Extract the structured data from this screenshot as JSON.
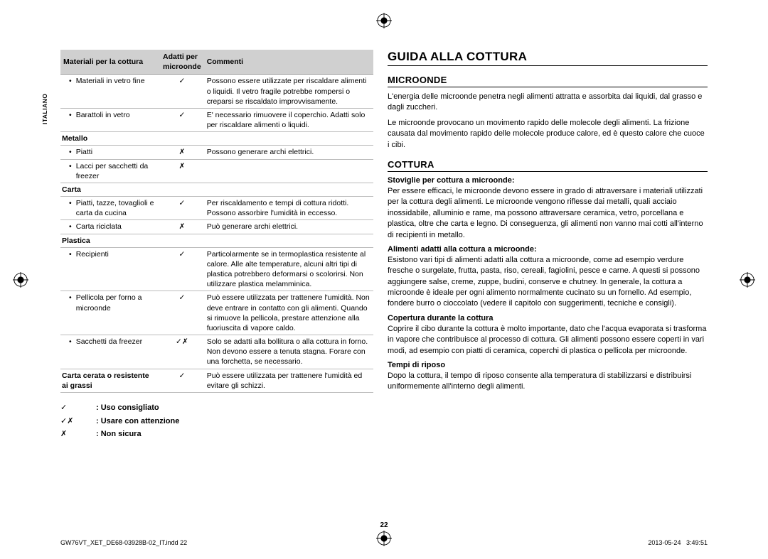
{
  "sideTab": "ITALIANO",
  "pageNumber": "22",
  "footer": {
    "left": "GW76VT_XET_DE68-03928B-02_IT.indd   22",
    "date": "2013-05-24",
    "time": "3:49:51"
  },
  "legend": {
    "items": [
      {
        "symbol": "✓",
        "text": ": Uso consigliato"
      },
      {
        "symbol": "✓✗",
        "text": ": Usare con attenzione"
      },
      {
        "symbol": "✗",
        "text": ": Non sicura"
      }
    ]
  },
  "table": {
    "headers": {
      "materiali": "Materiali per la cottura",
      "adatti": "Adatti per microonde",
      "commenti": "Commenti"
    },
    "rows": [
      {
        "type": "item",
        "material": "Materiali in vetro fine",
        "adatti": "✓",
        "comment": "Possono essere utilizzate per riscaldare alimenti o liquidi. Il vetro fragile potrebbe rompersi o creparsi se riscaldato improvvisamente."
      },
      {
        "type": "item",
        "material": "Barattoli in vetro",
        "adatti": "✓",
        "comment": "E' necessario rimuovere il coperchio. Adatti solo per riscaldare alimenti o liquidi."
      },
      {
        "type": "cat",
        "material": "Metallo"
      },
      {
        "type": "item",
        "material": "Piatti",
        "adatti": "✗",
        "comment": "Possono generare archi elettrici."
      },
      {
        "type": "item",
        "material": "Lacci per sacchetti da freezer",
        "adatti": "✗",
        "comment": ""
      },
      {
        "type": "cat",
        "material": "Carta"
      },
      {
        "type": "item",
        "material": "Piatti, tazze, tovaglioli e carta da cucina",
        "adatti": "✓",
        "comment": "Per riscaldamento e tempi di cottura ridotti. Possono assorbire l'umidità in eccesso."
      },
      {
        "type": "item",
        "material": "Carta riciclata",
        "adatti": "✗",
        "comment": "Può generare archi elettrici."
      },
      {
        "type": "cat",
        "material": "Plastica"
      },
      {
        "type": "item",
        "material": "Recipienti",
        "adatti": "✓",
        "comment": "Particolarmente se in termoplastica resistente al calore. Alle alte temperature, alcuni altri tipi di plastica potrebbero deformarsi o scolorirsi. Non utilizzare plastica melamminica."
      },
      {
        "type": "item",
        "material": "Pellicola per forno a microonde",
        "adatti": "✓",
        "comment": "Può essere utilizzata per trattenere l'umidità. Non deve entrare in contatto con gli alimenti. Quando si rimuove la pellicola, prestare attenzione alla fuoriuscita di vapore caldo."
      },
      {
        "type": "item",
        "material": "Sacchetti da freezer",
        "adatti": "✓✗",
        "comment": "Solo se adatti alla bollitura o alla cottura in forno. Non devono essere a tenuta stagna. Forare con una forchetta, se necessario."
      },
      {
        "type": "cat2",
        "material": "Carta cerata o resistente ai grassi",
        "adatti": "✓",
        "comment": "Può essere utilizzata per trattenere l'umidità ed evitare gli schizzi."
      }
    ]
  },
  "right": {
    "mainHeading": "GUIDA ALLA COTTURA",
    "sections": [
      {
        "heading": "MICROONDE",
        "paras": [
          "L'energia delle microonde penetra negli alimenti attratta e assorbita dai liquidi, dal grasso e dagli zuccheri.",
          "Le microonde provocano un movimento rapido delle molecole degli alimenti. La frizione causata dal movimento rapido delle molecole produce calore, ed è questo calore che cuoce i cibi."
        ],
        "subs": []
      },
      {
        "heading": "COTTURA",
        "paras": [],
        "subs": [
          {
            "title": "Stoviglie per cottura a microonde:",
            "text": "Per essere efficaci, le microonde devono essere in grado di attraversare i materiali utilizzati per la cottura degli alimenti. Le microonde vengono riflesse dai metalli, quali acciaio inossidabile, alluminio e rame, ma possono attraversare ceramica, vetro, porcellana e plastica, oltre che carta e legno. Di conseguenza, gli alimenti non vanno mai cotti all'interno di recipienti in metallo."
          },
          {
            "title": "Alimenti adatti alla cottura a microonde:",
            "text": "Esistono vari tipi di alimenti adatti alla cottura a microonde, come ad esempio verdure fresche o surgelate, frutta, pasta, riso, cereali, fagiolini, pesce e carne. A questi si possono aggiungere salse, creme, zuppe, budini, conserve e chutney. In generale, la cottura a microonde è ideale per ogni alimento normalmente cucinato su un fornello. Ad esempio, fondere burro o cioccolato (vedere il capitolo con suggerimenti, tecniche e consigli)."
          },
          {
            "title": "Copertura durante la cottura",
            "text": "Coprire il cibo durante la cottura è molto importante, dato che l'acqua evaporata si trasforma in vapore che contribuisce al processo di cottura. Gli alimenti possono essere coperti in vari modi, ad esempio con piatti di ceramica, coperchi di plastica o pellicola per microonde."
          },
          {
            "title": "Tempi di riposo",
            "text": "Dopo la cottura, il tempo di riposo consente alla temperatura di stabilizzarsi e distribuirsi uniformemente all'interno degli alimenti."
          }
        ]
      }
    ]
  }
}
